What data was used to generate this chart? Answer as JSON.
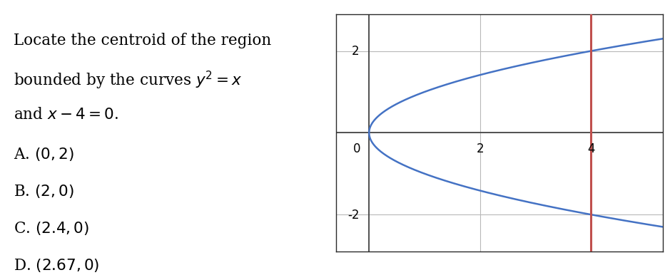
{
  "question_lines": [
    "Locate the centroid of the region",
    "bounded by the curves $y^2 = x$",
    "and $x - 4 = 0$."
  ],
  "options": [
    "A. $(0, 2)$",
    "B. $(2, 0)$",
    "C. $(2.4, 0)$",
    "D. $(2.67, 0)$"
  ],
  "xlim": [
    -0.6,
    5.3
  ],
  "ylim": [
    -2.9,
    2.9
  ],
  "xticks": [
    0,
    2,
    4
  ],
  "yticks": [
    -2,
    0,
    2
  ],
  "parabola_color": "#4472C4",
  "vline_color": "#C0504D",
  "vline_x": 4,
  "axis_color": "#3a3a3a",
  "grid_color": "#b8b8b8",
  "background_color": "#ffffff",
  "text_color": "#000000",
  "text_fontsize": 15.5,
  "option_fontsize": 15.5,
  "tick_fontsize": 12
}
